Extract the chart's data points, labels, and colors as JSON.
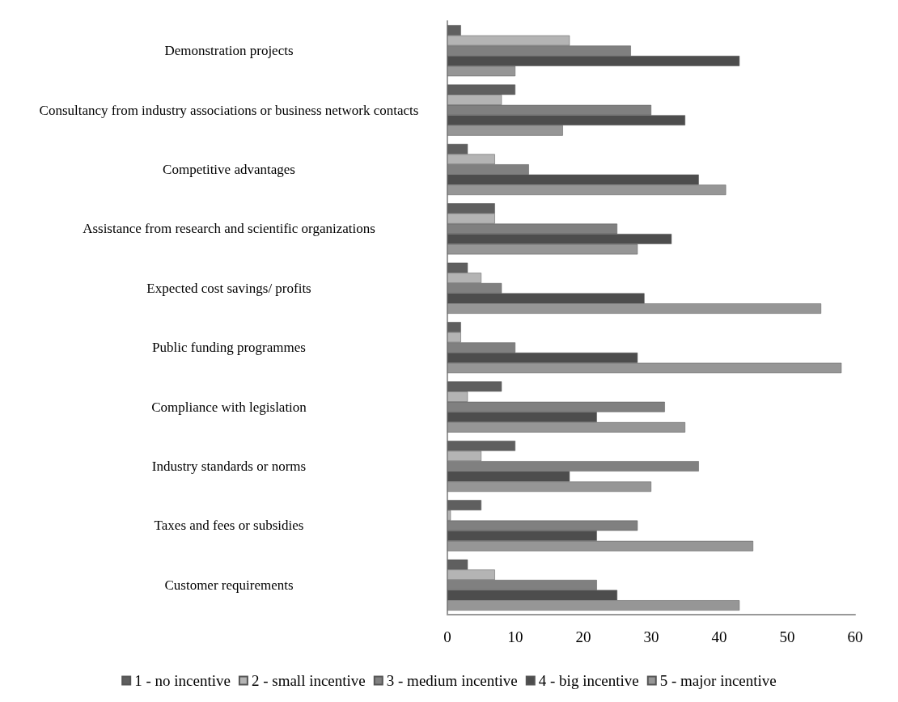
{
  "chart_data": {
    "type": "bar",
    "orientation": "horizontal",
    "categories": [
      "Demonstration projects",
      "Consultancy from industry associations or business network contacts",
      "Competitive advantages",
      "Assistance from research and scientific organizations",
      "Expected cost savings/ profits",
      "Public funding programmes",
      "Compliance with legislation",
      "Industry standards or norms",
      "Taxes and fees or subsidies",
      "Customer requirements"
    ],
    "series": [
      {
        "name": "1 - no incentive",
        "color": "#5f5f5f",
        "values": [
          2,
          10,
          3,
          7,
          3,
          2,
          8,
          10,
          5,
          3
        ]
      },
      {
        "name": "2 - small incentive",
        "color": "#b4b4b4",
        "values": [
          18,
          8,
          7,
          7,
          5,
          2,
          3,
          5,
          0.5,
          7
        ]
      },
      {
        "name": "3 - medium incentive",
        "color": "#808080",
        "values": [
          27,
          30,
          12,
          25,
          8,
          10,
          32,
          37,
          28,
          22
        ]
      },
      {
        "name": "4 - big incentive",
        "color": "#4d4d4d",
        "values": [
          43,
          35,
          37,
          33,
          29,
          28,
          22,
          18,
          22,
          25
        ]
      },
      {
        "name": "5 - major incentive",
        "color": "#969696",
        "values": [
          10,
          17,
          41,
          28,
          55,
          58,
          35,
          30,
          45,
          43
        ]
      }
    ],
    "xlim": [
      0,
      60
    ],
    "xticks": [
      0,
      10,
      20,
      30,
      40,
      50,
      60
    ],
    "grid": false,
    "legend": "bottom"
  }
}
